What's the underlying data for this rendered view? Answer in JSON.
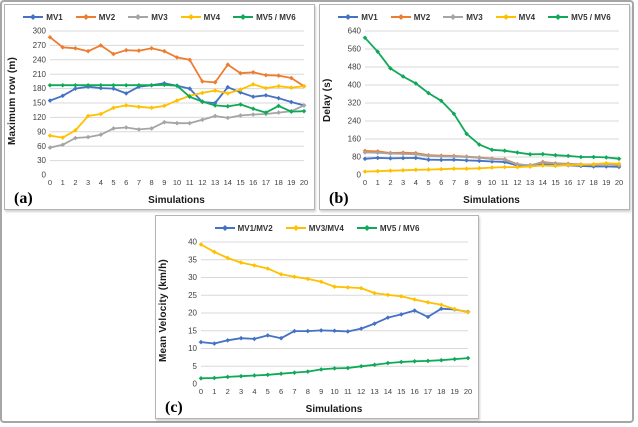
{
  "figure": {
    "outer_border_color": "#a6a6a6",
    "panel_border_color": "#b3b3b3",
    "grid_color": "#d9d9d9",
    "tick_color": "#404040"
  },
  "chart_data": [
    {
      "type": "line",
      "panel_label": "(a)",
      "title": "",
      "xlabel": "Simulations",
      "ylabel": "Maximum row (m)",
      "x": [
        0,
        1,
        2,
        3,
        4,
        5,
        6,
        7,
        8,
        9,
        10,
        11,
        12,
        13,
        14,
        15,
        16,
        17,
        18,
        19,
        20
      ],
      "ylim": [
        0,
        300
      ],
      "ytick_step": 30,
      "grid": true,
      "legend_position": "top",
      "series": [
        {
          "name": "MV1",
          "color": "#4472C4",
          "marker": "diamond",
          "values": [
            155,
            165,
            180,
            184,
            181,
            180,
            170,
            184,
            187,
            191,
            186,
            180,
            152,
            150,
            183,
            172,
            163,
            166,
            160,
            152,
            145
          ]
        },
        {
          "name": "MV2",
          "color": "#ED7D31",
          "marker": "diamond",
          "values": [
            287,
            266,
            264,
            258,
            270,
            252,
            260,
            259,
            264,
            258,
            245,
            240,
            195,
            193,
            230,
            212,
            214,
            208,
            207,
            202,
            185
          ]
        },
        {
          "name": "MV3",
          "color": "#A5A5A5",
          "marker": "diamond",
          "values": [
            57,
            63,
            77,
            79,
            84,
            97,
            99,
            95,
            97,
            110,
            108,
            108,
            115,
            123,
            119,
            124,
            126,
            127,
            130,
            133,
            145
          ]
        },
        {
          "name": "MV4",
          "color": "#FFC000",
          "marker": "diamond",
          "values": [
            82,
            78,
            93,
            123,
            127,
            140,
            145,
            142,
            140,
            144,
            155,
            165,
            171,
            176,
            170,
            178,
            189,
            181,
            185,
            182,
            185
          ]
        },
        {
          "name": "MV5 / MV6",
          "color": "#0FA958",
          "marker": "diamond",
          "values": [
            187,
            187,
            187,
            187,
            187,
            187,
            187,
            187,
            187,
            188,
            186,
            163,
            153,
            145,
            143,
            147,
            138,
            130,
            144,
            132,
            133
          ]
        }
      ]
    },
    {
      "type": "line",
      "panel_label": "(b)",
      "title": "",
      "xlabel": "Simulations",
      "ylabel": "Delay (s)",
      "x": [
        0,
        1,
        2,
        3,
        4,
        5,
        6,
        7,
        8,
        9,
        10,
        11,
        12,
        13,
        14,
        15,
        16,
        17,
        18,
        19,
        20
      ],
      "ylim": [
        0,
        640
      ],
      "ytick_step": 80,
      "grid": true,
      "legend_position": "top",
      "series": [
        {
          "name": "MV1",
          "color": "#4472C4",
          "marker": "diamond",
          "values": [
            72,
            76,
            74,
            75,
            76,
            68,
            67,
            68,
            65,
            63,
            60,
            58,
            42,
            38,
            48,
            45,
            43,
            40,
            38,
            38,
            36
          ]
        },
        {
          "name": "MV2",
          "color": "#ED7D31",
          "marker": "diamond",
          "values": [
            107,
            105,
            98,
            99,
            97,
            88,
            86,
            85,
            82,
            78,
            73,
            70,
            48,
            42,
            58,
            52,
            50,
            47,
            46,
            50,
            42
          ]
        },
        {
          "name": "MV3",
          "color": "#A5A5A5",
          "marker": "diamond",
          "values": [
            100,
            99,
            95,
            94,
            92,
            85,
            83,
            82,
            80,
            76,
            71,
            68,
            46,
            44,
            55,
            50,
            48,
            46,
            45,
            48,
            44
          ]
        },
        {
          "name": "MV4",
          "color": "#FFC000",
          "marker": "diamond",
          "values": [
            15,
            17,
            19,
            21,
            23,
            24,
            26,
            28,
            28,
            30,
            33,
            35,
            35,
            38,
            42,
            40,
            44,
            45,
            48,
            52,
            50
          ]
        },
        {
          "name": "MV5 / MV6",
          "color": "#0FA958",
          "marker": "diamond",
          "values": [
            610,
            548,
            474,
            438,
            407,
            364,
            330,
            272,
            183,
            135,
            112,
            108,
            100,
            92,
            93,
            88,
            85,
            80,
            80,
            78,
            72
          ]
        }
      ]
    },
    {
      "type": "line",
      "panel_label": "(c)",
      "title": "",
      "xlabel": "Simulations",
      "ylabel": "Mean Velocity (km/h)",
      "x": [
        0,
        1,
        2,
        3,
        4,
        5,
        6,
        7,
        8,
        9,
        10,
        11,
        12,
        13,
        14,
        15,
        16,
        17,
        18,
        19,
        20
      ],
      "ylim": [
        0,
        40
      ],
      "ytick_step": 5,
      "grid": true,
      "legend_position": "top",
      "series": [
        {
          "name": "MV1/MV2",
          "color": "#4472C4",
          "marker": "diamond",
          "values": [
            11.8,
            11.4,
            12.3,
            12.9,
            12.7,
            13.7,
            12.9,
            14.9,
            14.9,
            15.1,
            15.0,
            14.8,
            15.6,
            17.0,
            18.7,
            19.6,
            20.7,
            18.9,
            21.2,
            21.0,
            20.3
          ]
        },
        {
          "name": "MV3/MV4",
          "color": "#FFC000",
          "marker": "diamond",
          "values": [
            39.3,
            37.2,
            35.5,
            34.2,
            33.4,
            32.5,
            30.9,
            30.2,
            29.6,
            28.8,
            27.4,
            27.2,
            27.0,
            25.6,
            25.1,
            24.7,
            23.8,
            23.0,
            22.3,
            21.1,
            20.2
          ]
        },
        {
          "name": "MV5 / MV6",
          "color": "#0FA958",
          "marker": "diamond",
          "values": [
            1.6,
            1.7,
            2.0,
            2.2,
            2.4,
            2.6,
            2.9,
            3.2,
            3.5,
            4.1,
            4.4,
            4.5,
            5.0,
            5.4,
            5.9,
            6.2,
            6.4,
            6.5,
            6.7,
            7.0,
            7.3
          ]
        }
      ]
    }
  ]
}
